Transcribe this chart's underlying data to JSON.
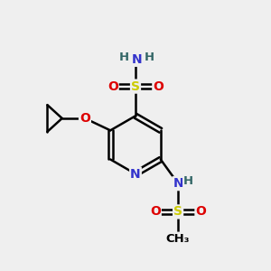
{
  "bg_color": "#efefef",
  "atom_colors": {
    "C": "#000000",
    "N": "#3333cc",
    "O": "#dd0000",
    "S": "#cccc00",
    "H": "#336666"
  },
  "bond_color": "#000000",
  "bond_width": 1.8,
  "title": ""
}
